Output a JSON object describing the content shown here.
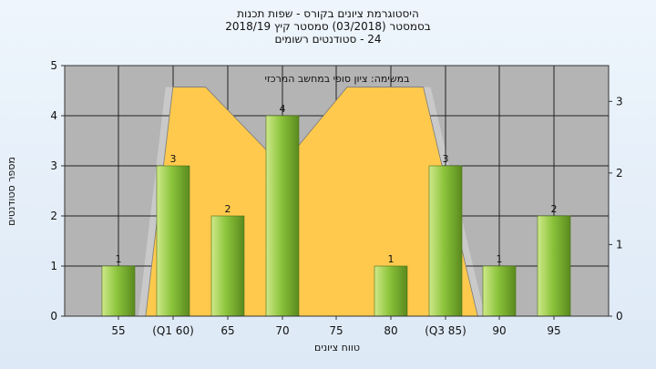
{
  "title_lines": [
    "היסטוגרמת ציונים בקורס - שפות תכנות",
    "בסמסטר (03/2018) סמסטר קיץ 2018/19",
    "24 - סטודנטים רשומים"
  ],
  "colors": {
    "plot_bg": "#b4b4b4",
    "bars": "#8cc43c",
    "area": "#ffc94d",
    "band": "#c9c9c9"
  },
  "chart_data": {
    "type": "bar",
    "title": "היסטוגרמת ציונים בקורס - שפות תכנות",
    "inner_label": "במשימה: ציון סופי במחשב המרכזי",
    "xlabel": "טווח ציונים",
    "ylabel": "מספר סטודנטים",
    "categories": [
      "55",
      "(Q1 60)",
      "65",
      "70",
      "75",
      "80",
      "(Q3 85)",
      "90",
      "95"
    ],
    "values": [
      1,
      3,
      2,
      4,
      0,
      1,
      3,
      1,
      2
    ],
    "bar_labels": [
      "1",
      "3",
      "2",
      "4",
      "",
      "1",
      "3",
      "1",
      "2"
    ],
    "ylim": [
      0,
      5
    ],
    "yticks": [
      "0",
      "1",
      "2",
      "3",
      "4",
      "5"
    ],
    "y2lim": [
      0,
      3.5
    ],
    "y2ticks": [
      "0",
      "1",
      "2",
      "3"
    ],
    "area_overlay": {
      "points": [
        [
          55,
          0
        ],
        [
          57.5,
          0
        ],
        [
          60,
          3.2
        ],
        [
          63,
          3.2
        ],
        [
          70,
          2.1
        ],
        [
          76,
          3.2
        ],
        [
          83,
          3.2
        ],
        [
          88,
          0
        ],
        [
          91,
          0
        ]
      ]
    },
    "grid": true
  }
}
